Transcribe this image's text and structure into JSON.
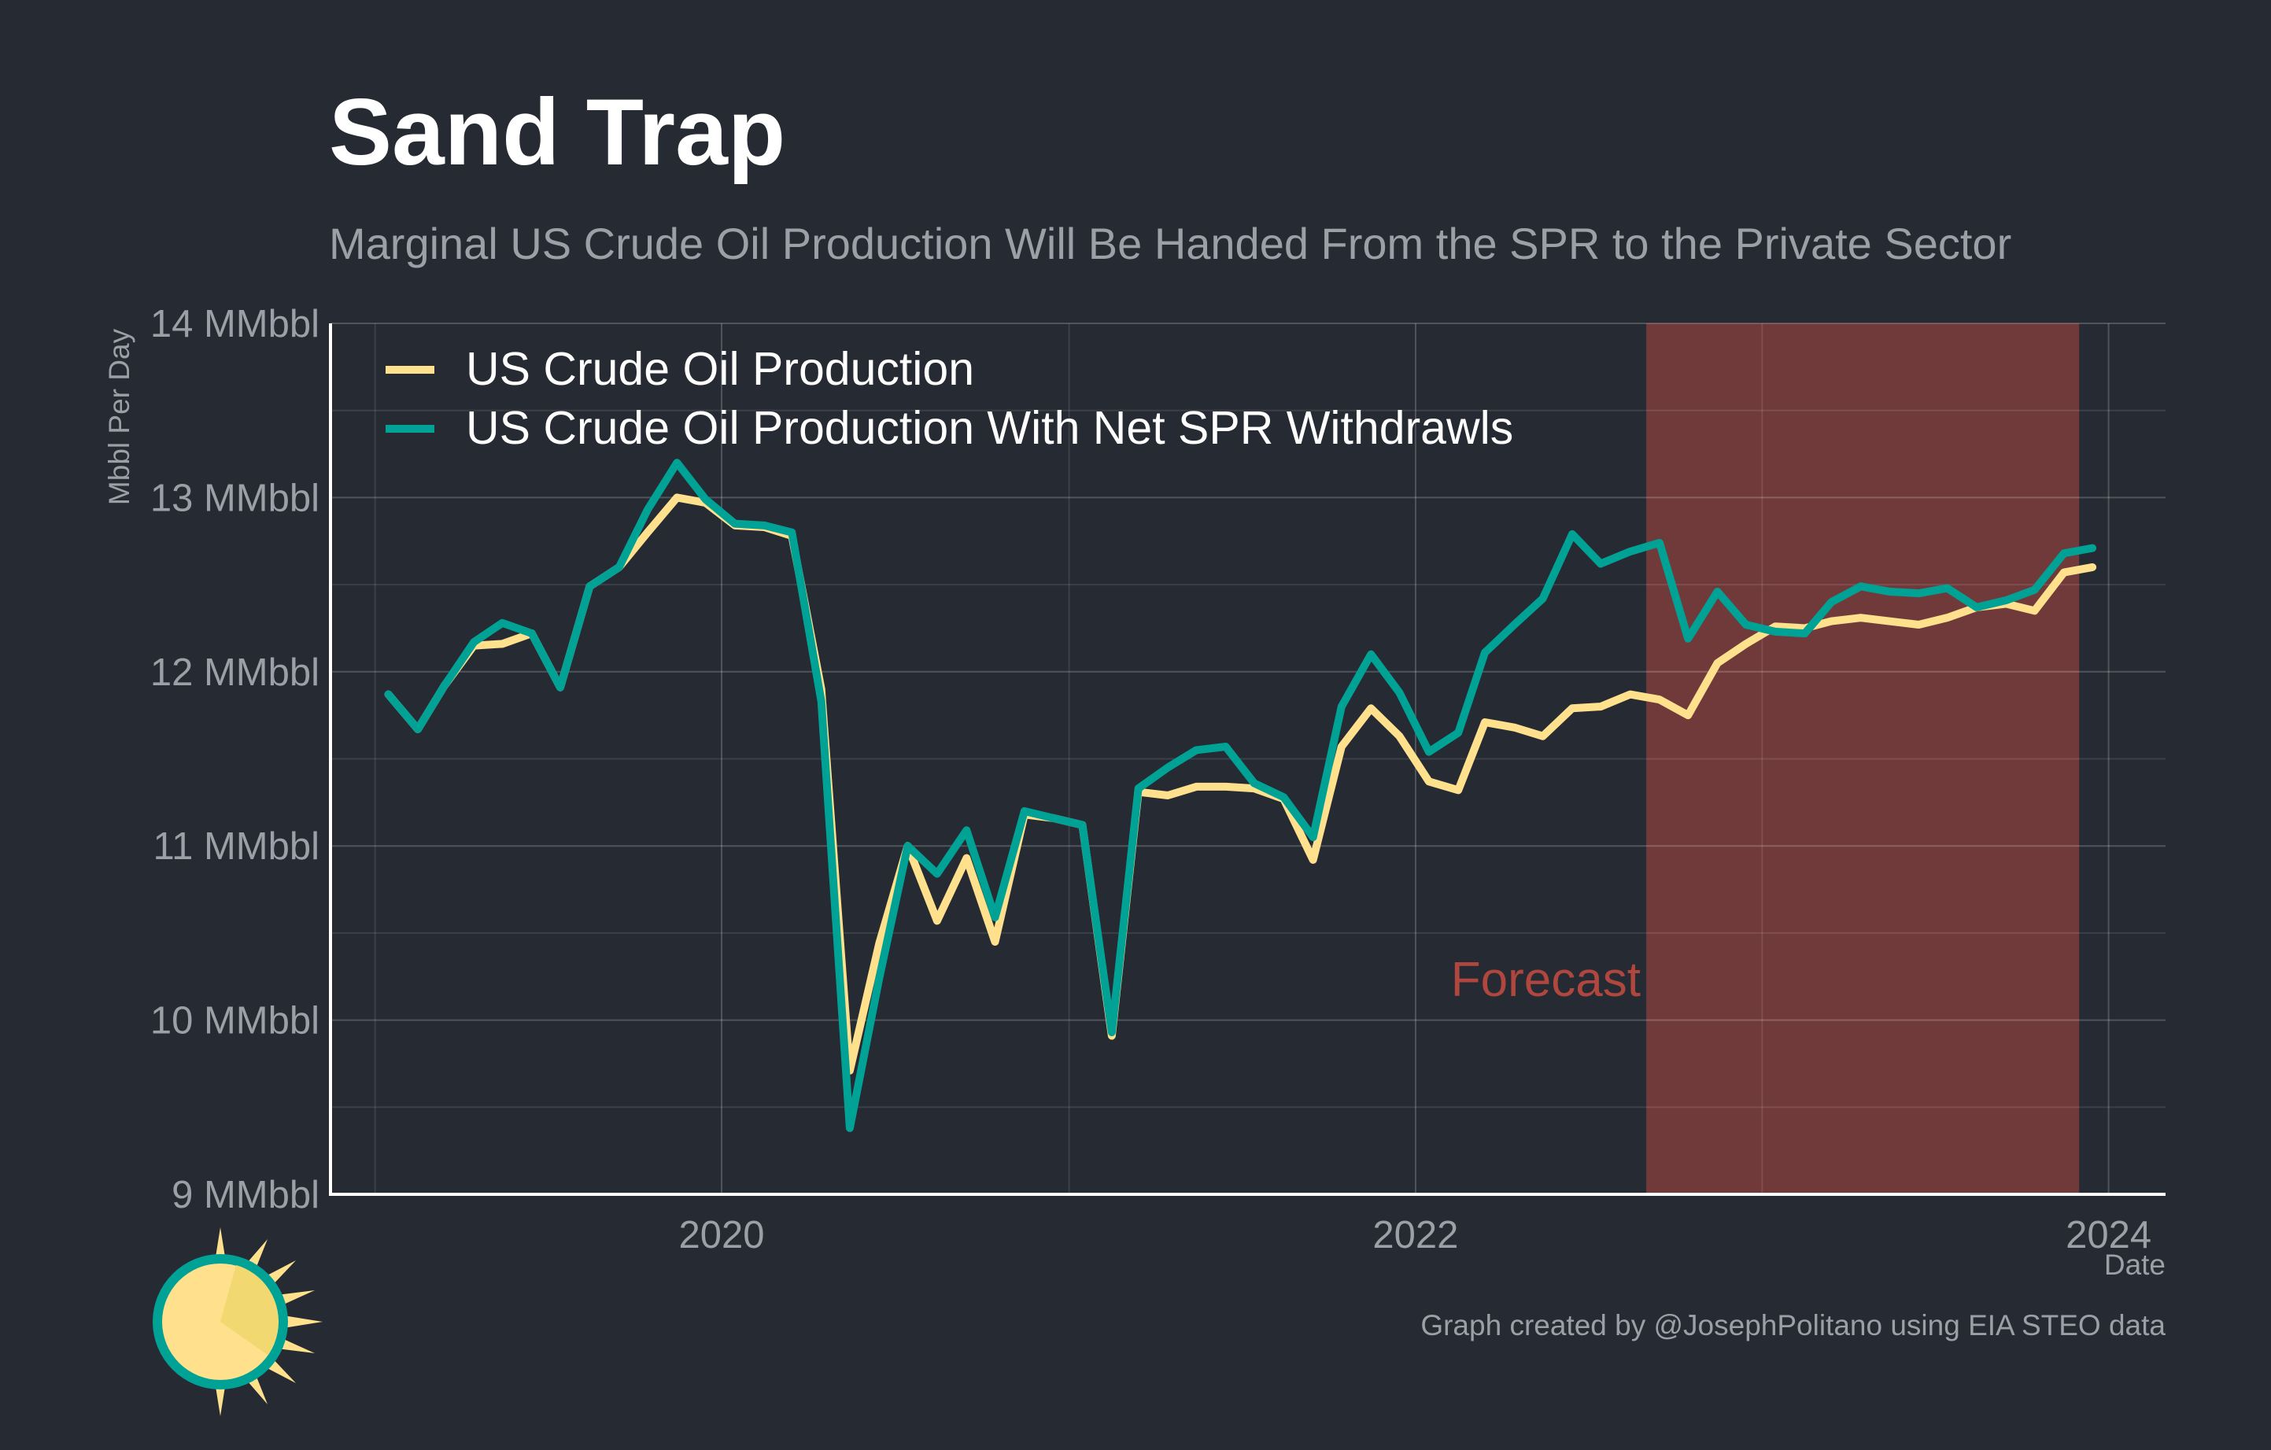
{
  "title": "Sand Trap",
  "subtitle": "Marginal US Crude Oil Production Will Be Handed From the SPR to the Private Sector",
  "caption": "Graph created by @JosephPolitano using EIA STEO data",
  "chart_data": {
    "type": "line",
    "ylabel": "Mbbl Per Day",
    "xlabel": "Date",
    "ylim": [
      9,
      14
    ],
    "yticks": [
      9,
      10,
      11,
      12,
      13,
      14
    ],
    "ytick_labels": [
      "9 MMbbl",
      "10 MMbbl",
      "11 MMbbl",
      "12 MMbbl",
      "13 MMbbl",
      "14 MMbbl"
    ],
    "xlim": [
      "2018-11-15",
      "2024-03-01"
    ],
    "xticks": [
      "2020-01-01",
      "2022-01-01",
      "2024-01-01"
    ],
    "xtick_labels": [
      "2020",
      "2022",
      "2024"
    ],
    "grid": true,
    "legend_position": "top-left",
    "forecast_band": {
      "start": "2022-09-01",
      "end": "2023-12-01",
      "label": "Forecast",
      "color": "#b0473f"
    },
    "x": [
      "2019-01",
      "2019-02",
      "2019-03",
      "2019-04",
      "2019-05",
      "2019-06",
      "2019-07",
      "2019-08",
      "2019-09",
      "2019-10",
      "2019-11",
      "2019-12",
      "2020-01",
      "2020-02",
      "2020-03",
      "2020-04",
      "2020-05",
      "2020-06",
      "2020-07",
      "2020-08",
      "2020-09",
      "2020-10",
      "2020-11",
      "2020-12",
      "2021-01",
      "2021-02",
      "2021-03",
      "2021-04",
      "2021-05",
      "2021-06",
      "2021-07",
      "2021-08",
      "2021-09",
      "2021-10",
      "2021-11",
      "2021-12",
      "2022-01",
      "2022-02",
      "2022-03",
      "2022-04",
      "2022-05",
      "2022-06",
      "2022-07",
      "2022-08",
      "2022-09",
      "2022-10",
      "2022-11",
      "2022-12",
      "2023-01",
      "2023-02",
      "2023-03",
      "2023-04",
      "2023-05",
      "2023-06",
      "2023-07",
      "2023-08",
      "2023-09",
      "2023-10",
      "2023-11",
      "2023-12"
    ],
    "series": [
      {
        "name": "US Crude Oil Production",
        "color": "#ffe08c",
        "values": [
          11.87,
          11.67,
          11.92,
          12.15,
          12.16,
          12.22,
          11.91,
          12.49,
          12.6,
          12.8,
          13.0,
          12.97,
          12.84,
          12.83,
          12.78,
          11.9,
          9.71,
          10.44,
          11.0,
          10.57,
          10.93,
          10.45,
          11.18,
          11.16,
          11.12,
          9.91,
          11.31,
          11.29,
          11.34,
          11.34,
          11.33,
          11.27,
          10.92,
          11.57,
          11.79,
          11.63,
          11.37,
          11.32,
          11.71,
          11.68,
          11.63,
          11.79,
          11.8,
          11.87,
          11.84,
          11.75,
          12.05,
          12.16,
          12.26,
          12.25,
          12.29,
          12.31,
          12.29,
          12.27,
          12.31,
          12.37,
          12.39,
          12.35,
          12.57,
          12.6
        ]
      },
      {
        "name": "US Crude Oil Production With Net SPR Withdrawls",
        "color": "#00a296",
        "values": [
          11.87,
          11.67,
          11.92,
          12.17,
          12.28,
          12.22,
          11.91,
          12.49,
          12.6,
          12.93,
          13.2,
          12.99,
          12.85,
          12.84,
          12.8,
          11.83,
          9.38,
          10.24,
          11.0,
          10.84,
          11.09,
          10.59,
          11.2,
          11.16,
          11.12,
          9.93,
          11.33,
          11.45,
          11.55,
          11.57,
          11.36,
          11.28,
          11.05,
          11.8,
          12.1,
          11.88,
          11.54,
          11.65,
          12.11,
          12.27,
          12.42,
          12.79,
          12.62,
          12.69,
          12.74,
          12.19,
          12.46,
          12.27,
          12.23,
          12.22,
          12.4,
          12.49,
          12.46,
          12.45,
          12.48,
          12.37,
          12.41,
          12.47,
          12.68,
          12.71
        ]
      }
    ]
  }
}
